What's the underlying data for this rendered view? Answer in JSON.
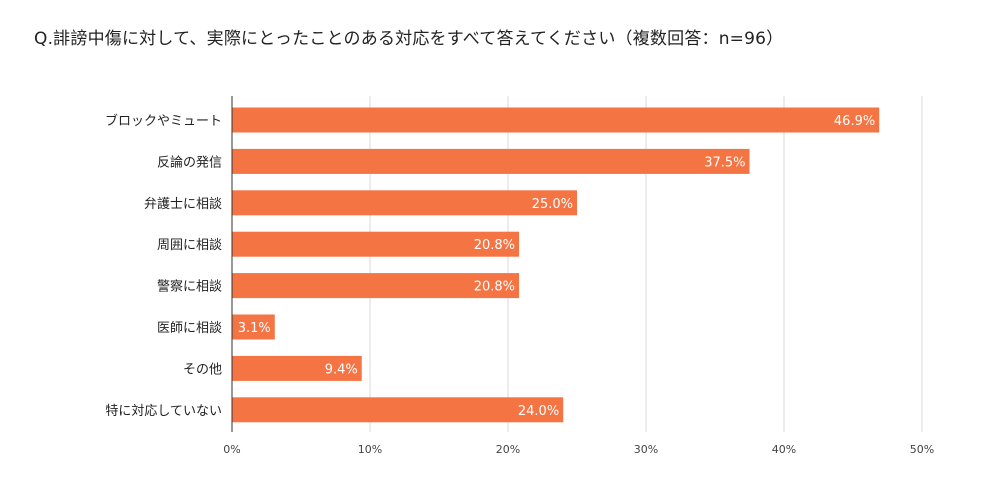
{
  "title": "Q.誹謗中傷に対して、実際にとったことのある対応をすべて答えてください（複数回答：n=96）",
  "colors": {
    "bar": "#f47444",
    "grid": "#d9d9d9",
    "axis": "#333333"
  },
  "chart_data": {
    "type": "bar",
    "orientation": "horizontal",
    "categories": [
      "ブロックやミュート",
      "反論の発信",
      "弁護士に相談",
      "周囲に相談",
      "警察に相談",
      "医師に相談",
      "その他",
      "特に対応していない"
    ],
    "values": [
      46.9,
      37.5,
      25.0,
      20.8,
      20.8,
      3.1,
      9.4,
      24.0
    ],
    "value_labels": [
      "46.9%",
      "37.5%",
      "25.0%",
      "20.8%",
      "20.8%",
      "3.1%",
      "9.4%",
      "24.0%"
    ],
    "xlim": [
      0,
      50
    ],
    "ticks": [
      0,
      10,
      20,
      30,
      40,
      50
    ],
    "tick_labels": [
      "0%",
      "10%",
      "20%",
      "30%",
      "40%",
      "50%"
    ],
    "grid": true,
    "legend": "none"
  }
}
